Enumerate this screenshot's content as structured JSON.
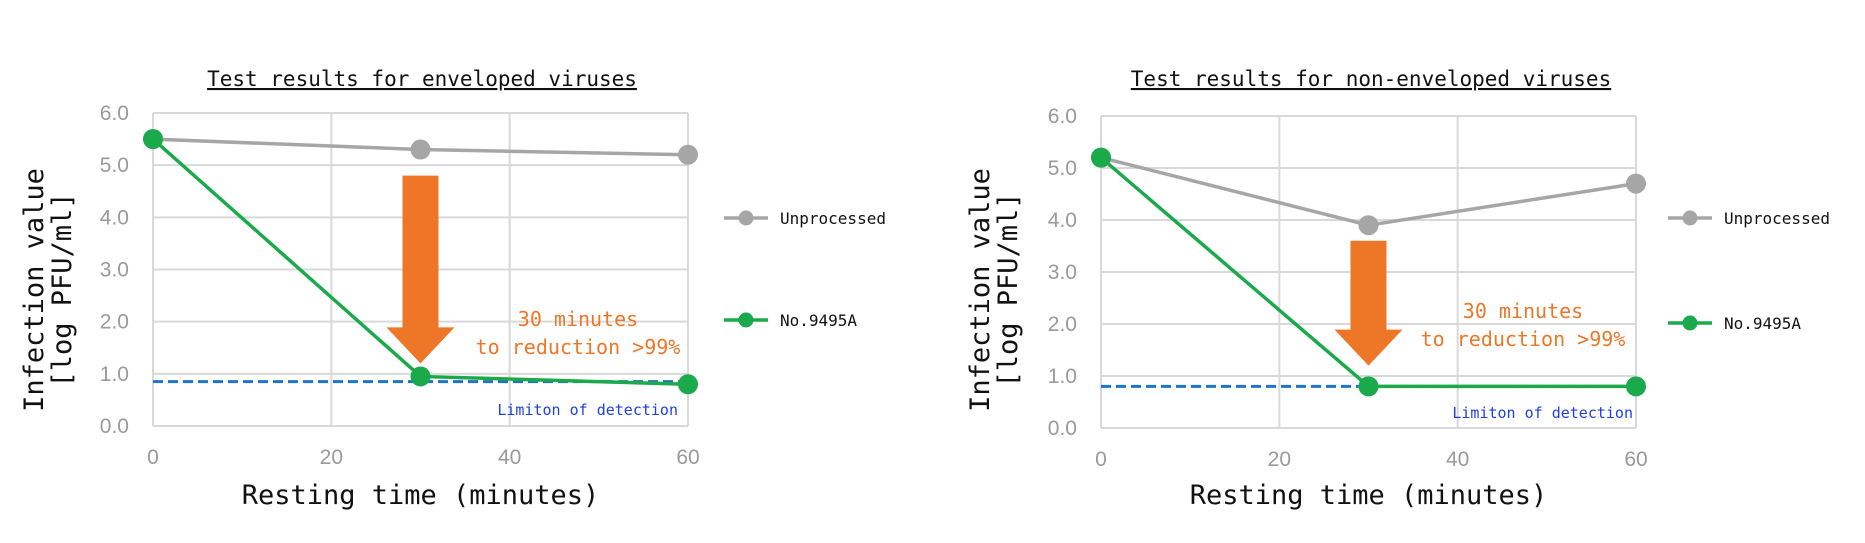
{
  "chart_data": [
    {
      "type": "line",
      "title": "Test results for enveloped viruses",
      "xlabel": "Resting time (minutes)",
      "ylabel_line1": "Infection value",
      "ylabel_line2": "[log PFU/ml]",
      "xlim": [
        0,
        60
      ],
      "ylim": [
        0,
        6
      ],
      "x_ticks": [
        "0",
        "20",
        "40",
        "60"
      ],
      "y_ticks": [
        "0.0",
        "1.0",
        "2.0",
        "3.0",
        "4.0",
        "5.0",
        "6.0"
      ],
      "grid": true,
      "legend_position": "right",
      "series": [
        {
          "name": "Unprocessed",
          "color": "#a6a6a6",
          "x": [
            0,
            30,
            60
          ],
          "y": [
            5.5,
            5.3,
            5.2
          ]
        },
        {
          "name": "No.9495A",
          "color": "#1aaa4b",
          "x": [
            0,
            30,
            60
          ],
          "y": [
            5.5,
            0.95,
            0.8
          ]
        }
      ],
      "detection_limit": {
        "value": 0.85,
        "label": "Limiton of detection",
        "color": "#1f73c8"
      },
      "annotation": {
        "line1": "30 minutes",
        "line2": "to reduction >99%",
        "color": "#ee7627",
        "arrow_from": 4.8,
        "arrow_to": 1.2,
        "arrow_x": 30
      }
    },
    {
      "type": "line",
      "title": "Test results for non-enveloped viruses",
      "xlabel": "Resting time (minutes)",
      "ylabel_line1": "Infection value",
      "ylabel_line2": "[log PFU/ml]",
      "xlim": [
        0,
        60
      ],
      "ylim": [
        0,
        6
      ],
      "x_ticks": [
        "0",
        "20",
        "40",
        "60"
      ],
      "y_ticks": [
        "0.0",
        "1.0",
        "2.0",
        "3.0",
        "4.0",
        "5.0",
        "6.0"
      ],
      "grid": true,
      "legend_position": "right",
      "series": [
        {
          "name": "Unprocessed",
          "color": "#a6a6a6",
          "x": [
            0,
            30,
            60
          ],
          "y": [
            5.2,
            3.9,
            4.7
          ]
        },
        {
          "name": "No.9495A",
          "color": "#1aaa4b",
          "x": [
            0,
            30,
            60
          ],
          "y": [
            5.2,
            0.8,
            0.8
          ]
        }
      ],
      "detection_limit": {
        "value": 0.8,
        "label": "Limiton of detection",
        "color": "#1f73c8"
      },
      "annotation": {
        "line1": "30 minutes",
        "line2": "to reduction >99%",
        "color": "#ee7627",
        "arrow_from": 3.6,
        "arrow_to": 1.2,
        "arrow_x": 30
      }
    }
  ]
}
